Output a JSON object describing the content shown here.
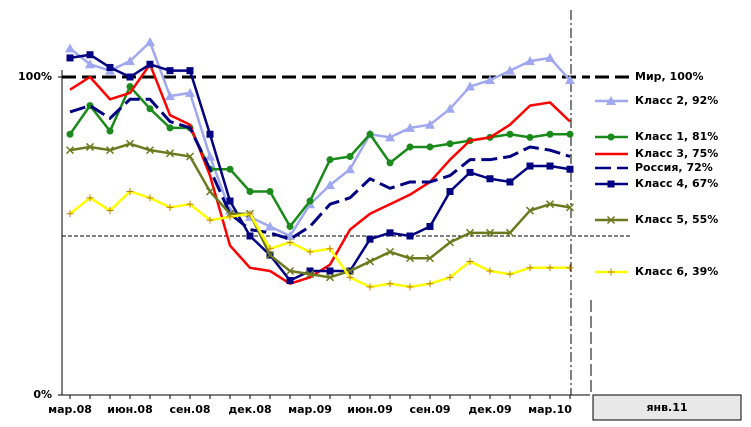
{
  "chart_data": {
    "type": "line",
    "categories": [
      "мар.08",
      null,
      null,
      "июн.08",
      null,
      null,
      "сен.08",
      null,
      null,
      "дек.08",
      null,
      null,
      "мар.09",
      null,
      null,
      "июн.09",
      null,
      null,
      "сен.09",
      null,
      null,
      "дек.09",
      null,
      null,
      "мар.10",
      null
    ],
    "annotation": "янв.11",
    "ylim": [
      0,
      120
    ],
    "yticks": [
      {
        "value": 0,
        "label": "0%"
      },
      {
        "value": 100,
        "label": "100%"
      }
    ],
    "reference_lines": [
      {
        "name": "Мир, 100%",
        "value": 100,
        "color": "#000000"
      },
      {
        "value": 50,
        "color": "#000000"
      }
    ],
    "series": [
      {
        "name": "Класс 2, 92%",
        "color": "#a0a8f0",
        "marker": "triangle",
        "values": [
          109,
          104,
          102,
          105,
          111,
          94,
          95,
          75,
          58,
          56,
          53,
          50,
          60,
          66,
          71,
          82,
          81,
          84,
          85,
          90,
          97,
          99,
          102,
          105,
          106,
          99
        ]
      },
      {
        "name": "Класс 1, 81%",
        "color": "#1a8a1a",
        "marker": "circle",
        "values": [
          82,
          91,
          83,
          97,
          90,
          84,
          84,
          71,
          71,
          64,
          64,
          53,
          61,
          74,
          75,
          82,
          73,
          78,
          78,
          79,
          80,
          81,
          82,
          81,
          82,
          82
        ]
      },
      {
        "name": "Класс 3, 75%",
        "color": "#ff0000",
        "marker": "none",
        "values": [
          96,
          100,
          93,
          95,
          104,
          88,
          85,
          69,
          47,
          40,
          39,
          35,
          37,
          41,
          52,
          57,
          60,
          63,
          67,
          74,
          80,
          81,
          85,
          91,
          92,
          86
        ]
      },
      {
        "name": "Россия, 72%",
        "color": "#000080",
        "marker": "none",
        "dashed": true,
        "values": [
          89,
          91,
          87,
          93,
          93,
          86,
          84,
          71,
          57,
          52,
          51,
          49,
          53,
          60,
          62,
          68,
          65,
          67,
          67,
          69,
          74,
          74,
          75,
          78,
          77,
          75
        ]
      },
      {
        "name": "Класс 4, 67%",
        "color": "#000080",
        "marker": "square",
        "values": [
          106,
          107,
          103,
          100,
          104,
          102,
          102,
          82,
          61,
          50,
          44,
          36,
          39,
          39,
          39,
          49,
          51,
          50,
          53,
          64,
          70,
          68,
          67,
          72,
          72,
          71
        ]
      },
      {
        "name": "Класс 5, 55%",
        "color": "#6b7a1e",
        "marker": "x",
        "values": [
          77,
          78,
          77,
          79,
          77,
          76,
          75,
          64,
          57,
          57,
          44,
          39,
          38,
          37,
          39,
          42,
          45,
          43,
          43,
          48,
          51,
          51,
          51,
          58,
          60,
          59
        ]
      },
      {
        "name": "Класс 6, 39%",
        "color": "#ffff00",
        "marker": "plus",
        "values": [
          57,
          62,
          58,
          64,
          62,
          59,
          60,
          55,
          56,
          57,
          46,
          48,
          45,
          46,
          37,
          34,
          35,
          34,
          35,
          37,
          42,
          39,
          38,
          40,
          40,
          40
        ]
      }
    ]
  }
}
